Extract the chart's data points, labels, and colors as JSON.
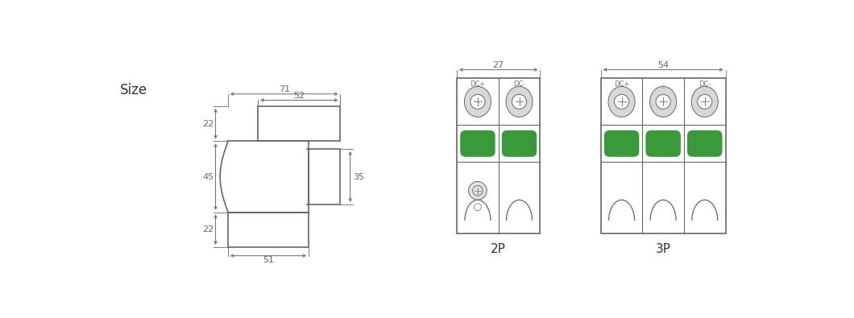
{
  "bg_color": "#ffffff",
  "line_color": "#666666",
  "green_color": "#3a9a3a",
  "dim_color": "#666666",
  "title": "Size",
  "label_2p": "2P",
  "label_3p": "3P",
  "dim_71": "71",
  "dim_52": "52",
  "dim_22a": "22",
  "dim_45": "45",
  "dim_22b": "22",
  "dim_35": "35",
  "dim_51": "51",
  "dim_27": "27",
  "dim_54": "54",
  "font_size_title": 12,
  "font_size_dim": 8,
  "font_size_label": 11,
  "font_size_dc": 6
}
